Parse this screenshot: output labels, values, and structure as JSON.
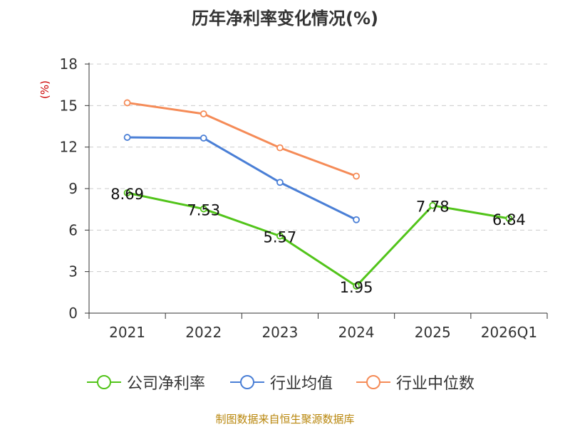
{
  "chart_data": {
    "type": "line",
    "title": "历年净利率变化情况(%)",
    "ylabel": "(%)",
    "xlabel": "",
    "categories": [
      "2021",
      "2022",
      "2023",
      "2024",
      "2025",
      "2026Q1"
    ],
    "ylim": [
      0,
      18
    ],
    "yticks": [
      0,
      3,
      6,
      9,
      12,
      15,
      18
    ],
    "grid": true,
    "legend_position": "bottom",
    "series": [
      {
        "name": "公司净利率",
        "color": "#52c41a",
        "values": [
          8.69,
          7.53,
          5.57,
          1.95,
          7.78,
          6.84
        ],
        "labels": [
          "8.69",
          "7.53",
          "5.57",
          "1.95",
          "7.78",
          "6.84"
        ]
      },
      {
        "name": "行业均值",
        "color": "#4a7fd6",
        "values": [
          12.7,
          12.65,
          9.45,
          6.75,
          null,
          null
        ]
      },
      {
        "name": "行业中位数",
        "color": "#f58b57",
        "values": [
          15.2,
          14.4,
          11.95,
          9.9,
          null,
          null
        ]
      }
    ]
  },
  "source": "制图数据来自恒生聚源数据库"
}
